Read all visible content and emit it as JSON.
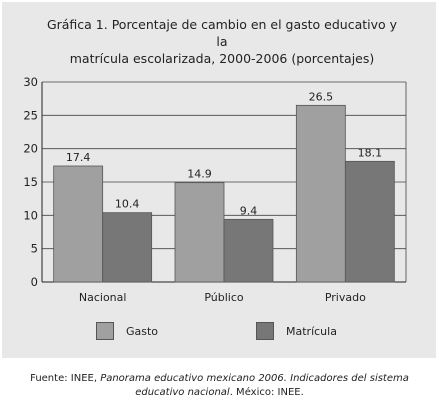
{
  "chart_data": {
    "type": "bar",
    "title": "Gráfica 1. Porcentaje de cambio en el gasto educativo y la matrícula escolarizada, 2000-2006 (porcentajes)",
    "title_line1": "Gráfica 1. Porcentaje de cambio en el gasto educativo y la",
    "title_line2": "matrícula escolarizada, 2000-2006 (porcentajes)",
    "categories": [
      "Nacional",
      "Público",
      "Privado"
    ],
    "series": [
      {
        "name": "Gasto",
        "values": [
          17.4,
          14.9,
          26.5
        ],
        "labels": [
          "17.4",
          "14.9",
          "26.5"
        ],
        "color": "#a0a0a0"
      },
      {
        "name": "Matrícula",
        "values": [
          10.4,
          9.4,
          18.1
        ],
        "labels": [
          "10.4",
          "9.4",
          "18.1"
        ],
        "color": "#777777"
      }
    ],
    "ylim": [
      0,
      30
    ],
    "yticks": [
      "0",
      "5",
      "10",
      "15",
      "20",
      "25",
      "30"
    ],
    "xlabel": "",
    "ylabel": "",
    "grid": true,
    "legend_position": "bottom"
  },
  "source": {
    "prefix": "Fuente: INEE, ",
    "italic": "Panorama educativo mexicano 2006. Indicadores del sistema educativo nacional",
    "suffix": ". México: INEE."
  },
  "colors": {
    "background": "#e8e8e8",
    "gasto": "#a0a0a0",
    "matricula": "#777777"
  }
}
